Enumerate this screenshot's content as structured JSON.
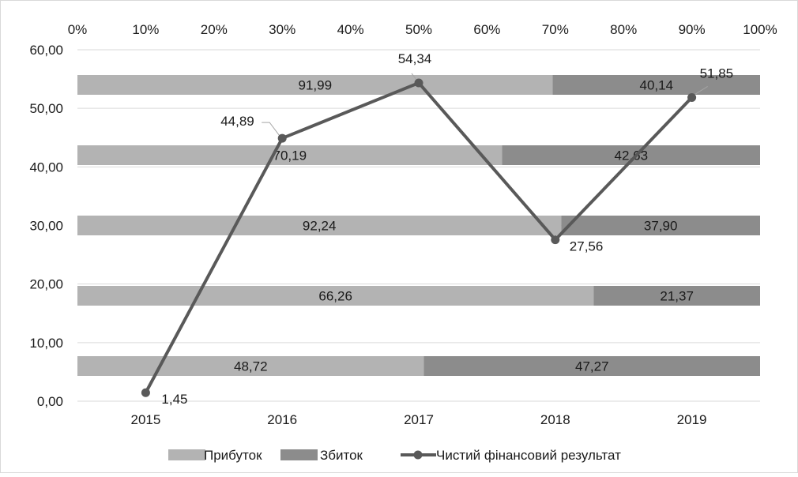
{
  "chart_data": {
    "type": "bar+line",
    "categories": [
      "2015",
      "2016",
      "2017",
      "2018",
      "2019"
    ],
    "bar_series": [
      {
        "name": "Прибуток",
        "values": [
          48.72,
          66.26,
          92.24,
          70.19,
          91.99
        ],
        "labels": [
          "48,72",
          "66,26",
          "92,24",
          "70,19",
          "91,99"
        ],
        "color": "#b3b3b3"
      },
      {
        "name": "Збиток",
        "values": [
          47.27,
          21.37,
          37.9,
          42.63,
          40.14
        ],
        "labels": [
          "47,27",
          "21,37",
          "37,90",
          "42,63",
          "40,14"
        ],
        "color": "#8c8c8c"
      }
    ],
    "bar_orientation": "horizontal-100%-stacked",
    "line_series": {
      "name": "Чистий фінансовий результат",
      "values": [
        1.45,
        44.89,
        54.34,
        27.56,
        51.85
      ],
      "labels": [
        "1,45",
        "44,89",
        "54,34",
        "27,56",
        "51,85"
      ],
      "color": "#595959"
    },
    "left_axis": {
      "ylim": [
        0,
        60
      ],
      "ticks": [
        "0,00",
        "10,00",
        "20,00",
        "30,00",
        "40,00",
        "50,00",
        "60,00"
      ]
    },
    "top_axis": {
      "xlim": [
        0,
        100
      ],
      "ticks": [
        "0%",
        "10%",
        "20%",
        "30%",
        "40%",
        "50%",
        "60%",
        "70%",
        "80%",
        "90%",
        "100%"
      ]
    },
    "grid": true,
    "legend_position": "bottom"
  }
}
